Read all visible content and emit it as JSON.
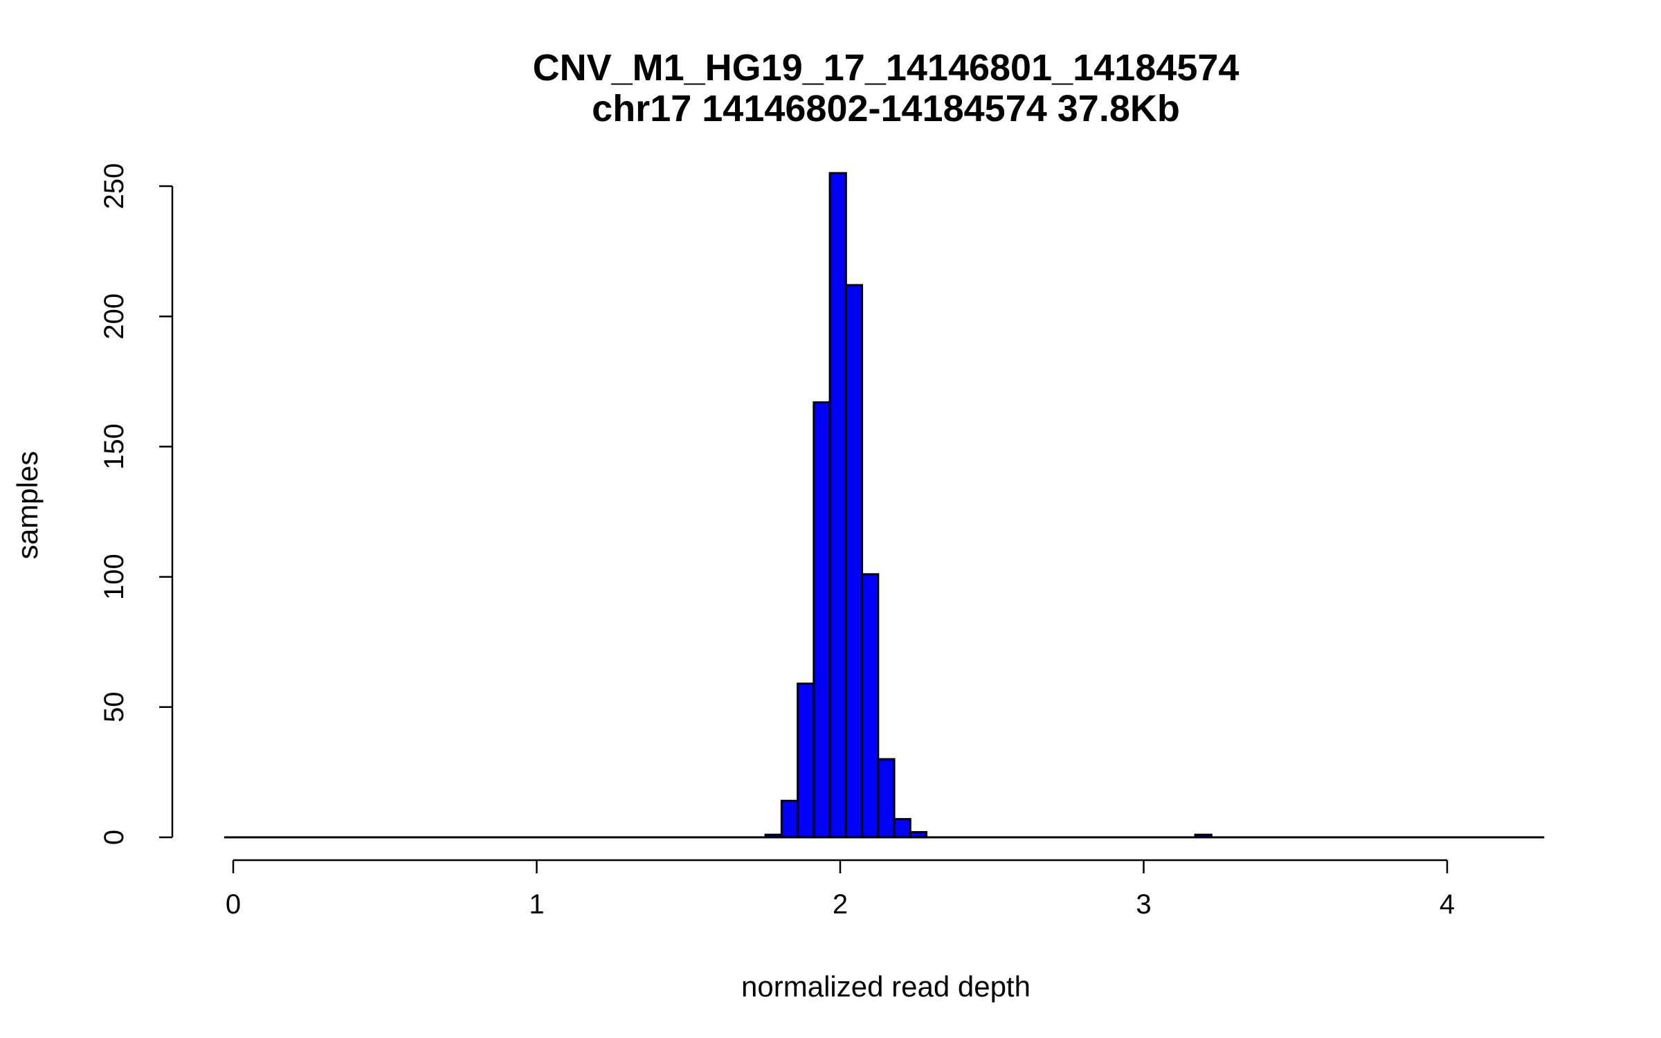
{
  "chart_data": {
    "type": "bar",
    "subtype": "histogram",
    "title": "CNV_M1_HG19_17_14146801_14184574",
    "subtitle": "chr17 14146802-14184574 37.8Kb",
    "xlabel": "normalized read depth",
    "ylabel": "samples",
    "xlim": [
      0,
      4
    ],
    "ylim": [
      0,
      250
    ],
    "xticks": [
      "0",
      "1",
      "2",
      "3",
      "4"
    ],
    "yticks": [
      "0",
      "50",
      "100",
      "150",
      "200",
      "250"
    ],
    "bar_color": "#0000ff",
    "grid": false,
    "baseline_range": [
      -0.03,
      4.32
    ],
    "bins": [
      {
        "x0": 1.754,
        "x1": 1.807,
        "count": 1
      },
      {
        "x0": 1.807,
        "x1": 1.86,
        "count": 14
      },
      {
        "x0": 1.86,
        "x1": 1.913,
        "count": 59
      },
      {
        "x0": 1.913,
        "x1": 1.966,
        "count": 167
      },
      {
        "x0": 1.966,
        "x1": 2.019,
        "count": 255
      },
      {
        "x0": 2.019,
        "x1": 2.072,
        "count": 212
      },
      {
        "x0": 2.072,
        "x1": 2.125,
        "count": 101
      },
      {
        "x0": 2.125,
        "x1": 2.178,
        "count": 30
      },
      {
        "x0": 2.178,
        "x1": 2.231,
        "count": 7
      },
      {
        "x0": 2.231,
        "x1": 2.284,
        "count": 2
      },
      {
        "x0": 3.17,
        "x1": 3.223,
        "count": 1
      }
    ]
  }
}
